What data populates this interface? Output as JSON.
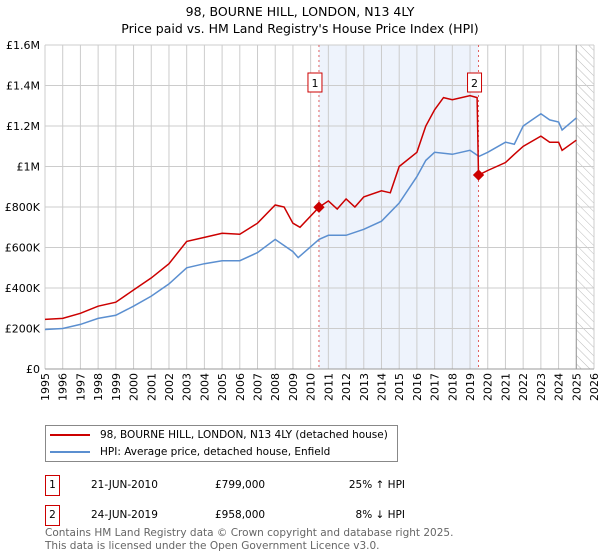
{
  "title_line1": "98, BOURNE HILL, LONDON, N13 4LY",
  "title_line2": "Price paid vs. HM Land Registry's House Price Index (HPI)",
  "colors": {
    "property": "#cc0000",
    "hpi": "#5b8fd0",
    "shade": "#eef3fc"
  },
  "chart_data": {
    "type": "line",
    "xlim": [
      1995,
      2026
    ],
    "ylim": [
      0,
      1600000
    ],
    "x_ticks": [
      "1995",
      "1996",
      "1997",
      "1998",
      "1999",
      "2000",
      "2001",
      "2002",
      "2003",
      "2004",
      "2005",
      "2006",
      "2007",
      "2008",
      "2009",
      "2010",
      "2011",
      "2012",
      "2013",
      "2014",
      "2015",
      "2016",
      "2017",
      "2018",
      "2019",
      "2020",
      "2021",
      "2022",
      "2023",
      "2024",
      "2025",
      "2026"
    ],
    "y_ticks": [
      {
        "v": 0,
        "label": "£0"
      },
      {
        "v": 200000,
        "label": "£200K"
      },
      {
        "v": 400000,
        "label": "£400K"
      },
      {
        "v": 600000,
        "label": "£600K"
      },
      {
        "v": 800000,
        "label": "£800K"
      },
      {
        "v": 1000000,
        "label": "£1M"
      },
      {
        "v": 1200000,
        "label": "£1.2M"
      },
      {
        "v": 1400000,
        "label": "£1.4M"
      },
      {
        "v": 1600000,
        "label": "£1.6M"
      }
    ],
    "grid": true,
    "shaded_range": [
      2010.47,
      2019.48
    ],
    "hatched_from": 2025.0,
    "series": [
      {
        "name": "98, BOURNE HILL, LONDON, N13 4LY (detached house)",
        "color": "#cc0000",
        "x": [
          1995,
          1996,
          1997,
          1998,
          1999,
          2000,
          2001,
          2002,
          2003,
          2004,
          2005,
          2006,
          2007,
          2008,
          2008.5,
          2009,
          2009.4,
          2010.47,
          2011,
          2011.5,
          2012,
          2012.5,
          2013,
          2014,
          2014.5,
          2015,
          2016,
          2016.5,
          2017,
          2017.5,
          2018,
          2019,
          2019.4,
          2019.48,
          2020,
          2021,
          2021.5,
          2022,
          2023,
          2023.5,
          2024,
          2024.2,
          2025
        ],
        "y": [
          245000,
          250000,
          275000,
          310000,
          330000,
          390000,
          450000,
          520000,
          630000,
          650000,
          670000,
          665000,
          720000,
          810000,
          800000,
          720000,
          700000,
          799000,
          830000,
          790000,
          840000,
          800000,
          850000,
          880000,
          870000,
          1000000,
          1070000,
          1200000,
          1280000,
          1340000,
          1330000,
          1350000,
          1340000,
          958000,
          980000,
          1020000,
          1060000,
          1100000,
          1150000,
          1120000,
          1120000,
          1080000,
          1130000
        ]
      },
      {
        "name": "HPI: Average price, detached house, Enfield",
        "color": "#5b8fd0",
        "x": [
          1995,
          1996,
          1997,
          1998,
          1999,
          2000,
          2001,
          2002,
          2003,
          2004,
          2005,
          2006,
          2007,
          2008,
          2009,
          2009.3,
          2010.47,
          2011,
          2012,
          2013,
          2014,
          2015,
          2016,
          2016.5,
          2017,
          2018,
          2019,
          2019.5,
          2020,
          2021,
          2021.5,
          2022,
          2022.5,
          2023,
          2023.5,
          2024,
          2024.2,
          2025
        ],
        "y": [
          195000,
          200000,
          220000,
          250000,
          265000,
          310000,
          360000,
          420000,
          500000,
          520000,
          535000,
          535000,
          575000,
          640000,
          580000,
          550000,
          640000,
          660000,
          660000,
          690000,
          730000,
          820000,
          950000,
          1030000,
          1070000,
          1060000,
          1080000,
          1050000,
          1070000,
          1120000,
          1110000,
          1200000,
          1230000,
          1260000,
          1230000,
          1220000,
          1180000,
          1240000
        ]
      }
    ],
    "annotations": [
      {
        "label": "1",
        "x": 2010.47,
        "y": 799000
      },
      {
        "label": "2",
        "x": 2019.48,
        "y": 958000
      }
    ]
  },
  "legend": {
    "property": "98, BOURNE HILL, LONDON, N13 4LY (detached house)",
    "hpi": "HPI: Average price, detached house, Enfield"
  },
  "transactions": [
    {
      "num": "1",
      "date": "21-JUN-2010",
      "price": "£799,000",
      "hpi": "25% ↑ HPI"
    },
    {
      "num": "2",
      "date": "24-JUN-2019",
      "price": "£958,000",
      "hpi": "8% ↓ HPI"
    }
  ],
  "footer_line1": "Contains HM Land Registry data © Crown copyright and database right 2025.",
  "footer_line2": "This data is licensed under the Open Government Licence v3.0."
}
